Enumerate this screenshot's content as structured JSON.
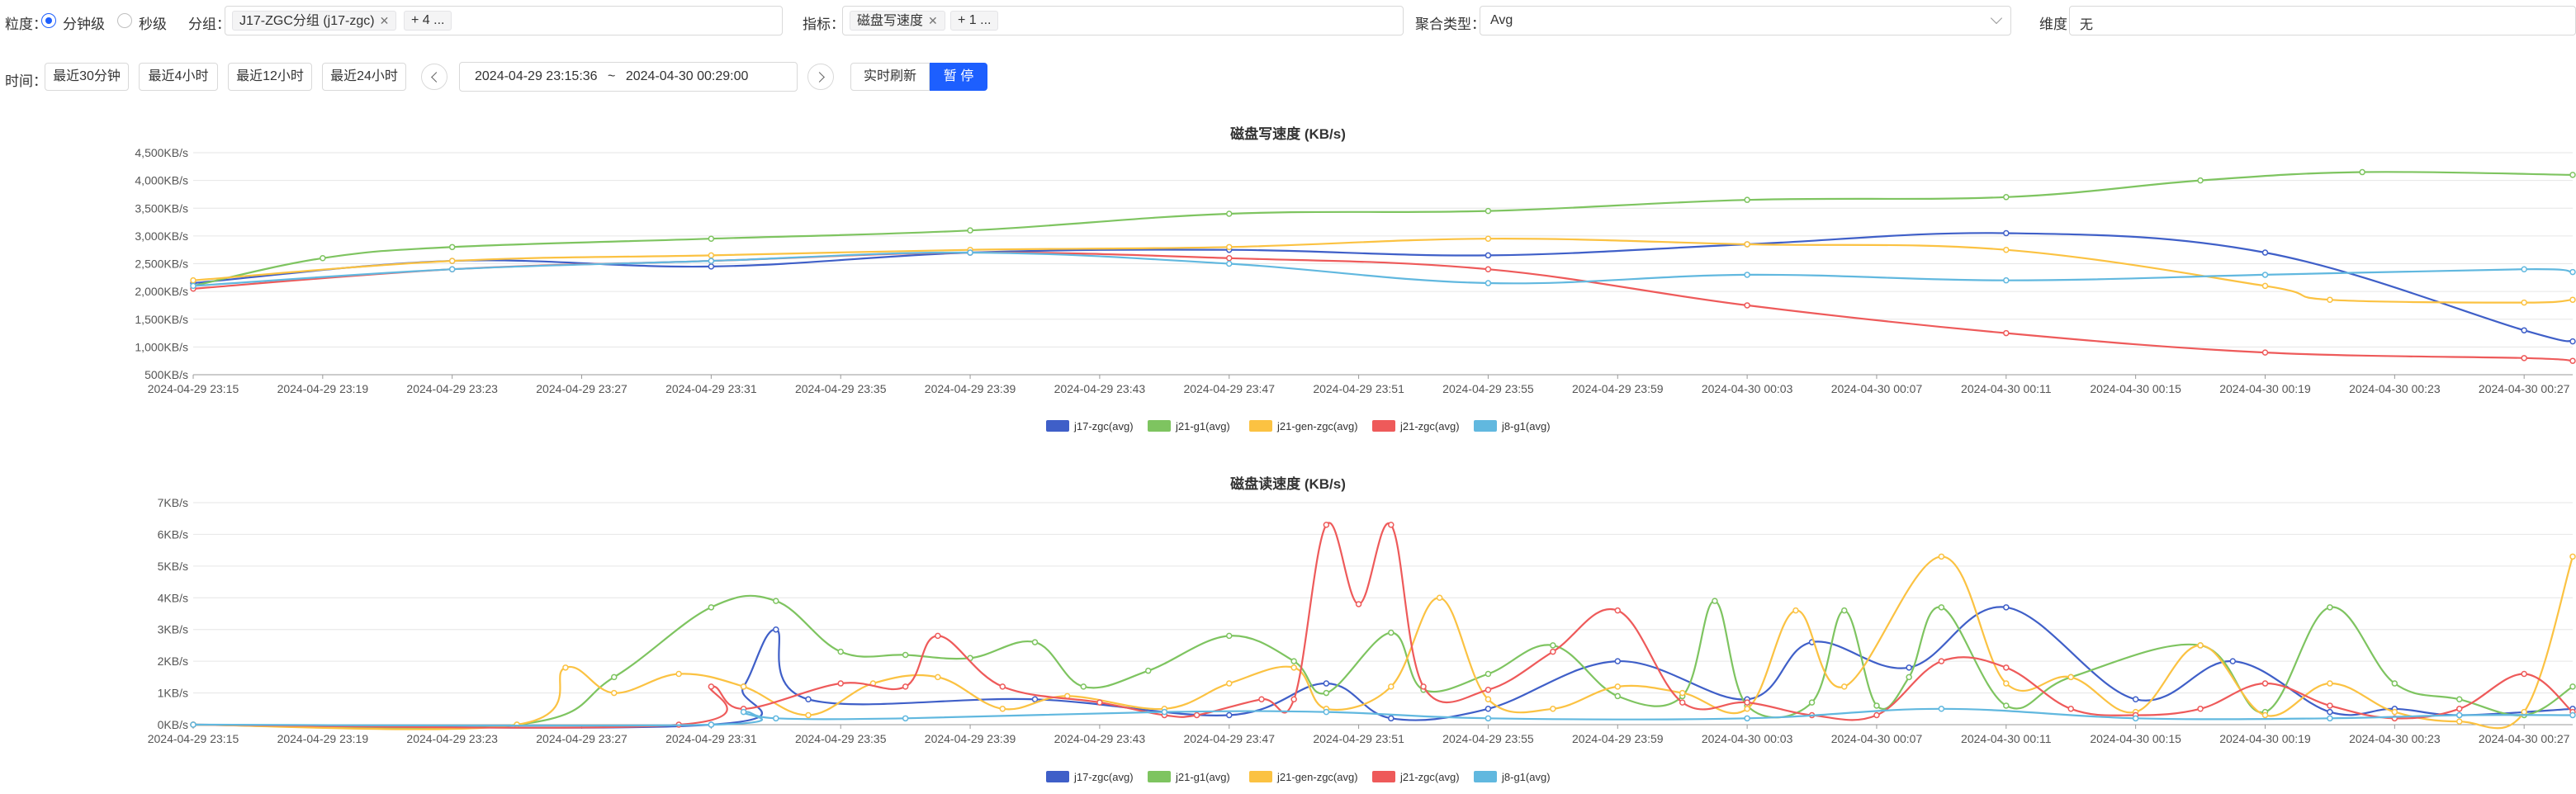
{
  "filters": {
    "granularity_label": "粒度：",
    "granularity_options": [
      "分钟级",
      "秒级"
    ],
    "granularity_selected": 0,
    "group_label": "分组：",
    "group_tags": [
      "J17-ZGC分组 (j17-zgc)",
      "+ 4 ..."
    ],
    "metric_label": "指标：",
    "metric_tags": [
      "磁盘写速度",
      "+ 1 ..."
    ],
    "agg_label": "聚合类型：",
    "agg_value": "Avg",
    "dim_label": "维度：",
    "dim_value": "无"
  },
  "time": {
    "label": "时间：",
    "quick": [
      "最近30分钟",
      "最近4小时",
      "最近12小时",
      "最近24小时"
    ],
    "start": "2024-04-29 23:15:36",
    "sep": "~",
    "end": "2024-04-30 00:29:00",
    "refresh_label": "实时刷新",
    "pause_label": "暂 停"
  },
  "colors": {
    "j17-zgc(avg)": "#3f5fc8",
    "j21-g1(avg)": "#7ec460",
    "j21-gen-zgc(avg)": "#fbc242",
    "j21-zgc(avg)": "#ee5a5a",
    "j8-g1(avg)": "#61b8df",
    "accent": "#1d5ffe"
  },
  "chart_data": [
    {
      "type": "line",
      "title": "磁盘写速度 (KB/s)",
      "xlabel": "",
      "ylabel": "",
      "ylim": [
        500,
        4500
      ],
      "yticks": [
        "500KB/s",
        "1,000KB/s",
        "1,500KB/s",
        "2,000KB/s",
        "2,500KB/s",
        "3,000KB/s",
        "3,500KB/s",
        "4,000KB/s",
        "4,500KB/s"
      ],
      "xlim": [
        0,
        73.5
      ],
      "xticks": [
        "2024-04-29 23:15",
        "2024-04-29 23:19",
        "2024-04-29 23:23",
        "2024-04-29 23:27",
        "2024-04-29 23:31",
        "2024-04-29 23:35",
        "2024-04-29 23:39",
        "2024-04-29 23:43",
        "2024-04-29 23:47",
        "2024-04-29 23:51",
        "2024-04-29 23:55",
        "2024-04-29 23:59",
        "2024-04-30 00:03",
        "2024-04-30 00:07",
        "2024-04-30 00:11",
        "2024-04-30 00:15",
        "2024-04-30 00:19",
        "2024-04-30 00:23",
        "2024-04-30 00:27"
      ],
      "legend": "bottom",
      "grid": true,
      "series": [
        {
          "name": "j17-zgc(avg)",
          "values": [
            [
              0,
              2150
            ],
            [
              8,
              2550
            ],
            [
              16,
              2450
            ],
            [
              24,
              2700
            ],
            [
              32,
              2750
            ],
            [
              40,
              2650
            ],
            [
              48,
              2850
            ],
            [
              56,
              3050
            ],
            [
              64,
              2700
            ],
            [
              72,
              1300
            ],
            [
              73.5,
              1100
            ]
          ]
        },
        {
          "name": "j21-g1(avg)",
          "values": [
            [
              0,
              2100
            ],
            [
              4,
              2600
            ],
            [
              8,
              2800
            ],
            [
              16,
              2950
            ],
            [
              24,
              3100
            ],
            [
              32,
              3400
            ],
            [
              40,
              3450
            ],
            [
              48,
              3650
            ],
            [
              56,
              3700
            ],
            [
              62,
              4000
            ],
            [
              67,
              4150
            ],
            [
              73.5,
              4100
            ]
          ]
        },
        {
          "name": "j21-gen-zgc(avg)",
          "values": [
            [
              0,
              2200
            ],
            [
              8,
              2550
            ],
            [
              16,
              2650
            ],
            [
              24,
              2750
            ],
            [
              32,
              2800
            ],
            [
              40,
              2950
            ],
            [
              48,
              2850
            ],
            [
              56,
              2750
            ],
            [
              64,
              2100
            ],
            [
              66,
              1850
            ],
            [
              72,
              1800
            ],
            [
              73.5,
              1850
            ]
          ]
        },
        {
          "name": "j21-zgc(avg)",
          "values": [
            [
              0,
              2050
            ],
            [
              8,
              2400
            ],
            [
              16,
              2550
            ],
            [
              24,
              2700
            ],
            [
              32,
              2600
            ],
            [
              40,
              2400
            ],
            [
              48,
              1750
            ],
            [
              56,
              1250
            ],
            [
              64,
              900
            ],
            [
              72,
              800
            ],
            [
              73.5,
              750
            ]
          ]
        },
        {
          "name": "j8-g1(avg)",
          "values": [
            [
              0,
              2100
            ],
            [
              8,
              2400
            ],
            [
              16,
              2550
            ],
            [
              24,
              2700
            ],
            [
              32,
              2500
            ],
            [
              40,
              2150
            ],
            [
              48,
              2300
            ],
            [
              56,
              2200
            ],
            [
              64,
              2300
            ],
            [
              72,
              2400
            ],
            [
              73.5,
              2350
            ]
          ]
        }
      ]
    },
    {
      "type": "line",
      "title": "磁盘读速度 (KB/s)",
      "xlabel": "",
      "ylabel": "",
      "ylim": [
        0,
        7
      ],
      "yticks": [
        "0KB/s",
        "1KB/s",
        "2KB/s",
        "3KB/s",
        "4KB/s",
        "5KB/s",
        "6KB/s",
        "7KB/s"
      ],
      "xlim": [
        0,
        73.5
      ],
      "xticks": [
        "2024-04-29 23:15",
        "2024-04-29 23:19",
        "2024-04-29 23:23",
        "2024-04-29 23:27",
        "2024-04-29 23:31",
        "2024-04-29 23:35",
        "2024-04-29 23:39",
        "2024-04-29 23:43",
        "2024-04-29 23:47",
        "2024-04-29 23:51",
        "2024-04-29 23:55",
        "2024-04-29 23:59",
        "2024-04-30 00:03",
        "2024-04-30 00:07",
        "2024-04-30 00:11",
        "2024-04-30 00:15",
        "2024-04-30 00:19",
        "2024-04-30 00:23",
        "2024-04-30 00:27"
      ],
      "legend": "bottom",
      "grid": true,
      "series": [
        {
          "name": "j17-zgc(avg)",
          "values": [
            [
              0,
              0
            ],
            [
              16,
              0
            ],
            [
              17,
              1.2
            ],
            [
              18,
              3
            ],
            [
              19,
              0.8
            ],
            [
              26,
              0.8
            ],
            [
              32,
              0.3
            ],
            [
              35,
              1.3
            ],
            [
              37,
              0.2
            ],
            [
              40,
              0.5
            ],
            [
              44,
              2
            ],
            [
              48,
              0.8
            ],
            [
              50,
              2.6
            ],
            [
              53,
              1.8
            ],
            [
              56,
              3.7
            ],
            [
              60,
              0.8
            ],
            [
              63,
              2
            ],
            [
              66,
              0.4
            ],
            [
              68,
              0.5
            ],
            [
              70,
              0.3
            ],
            [
              73.5,
              0.5
            ]
          ]
        },
        {
          "name": "j21-g1(avg)",
          "values": [
            [
              0,
              0
            ],
            [
              10,
              0
            ],
            [
              13,
              1.5
            ],
            [
              16,
              3.7
            ],
            [
              18,
              3.9
            ],
            [
              20,
              2.3
            ],
            [
              22,
              2.2
            ],
            [
              24,
              2.1
            ],
            [
              26,
              2.6
            ],
            [
              27.5,
              1.2
            ],
            [
              29.5,
              1.7
            ],
            [
              32,
              2.8
            ],
            [
              34,
              2
            ],
            [
              35,
              1
            ],
            [
              37,
              2.9
            ],
            [
              38,
              1.1
            ],
            [
              40,
              1.6
            ],
            [
              42,
              2.5
            ],
            [
              44,
              0.9
            ],
            [
              46,
              0.9
            ],
            [
              47,
              3.9
            ],
            [
              48,
              0.6
            ],
            [
              50,
              0.7
            ],
            [
              51,
              3.6
            ],
            [
              52,
              0.6
            ],
            [
              53,
              1.5
            ],
            [
              54,
              3.7
            ],
            [
              56,
              0.6
            ],
            [
              58,
              1.5
            ],
            [
              62,
              2.5
            ],
            [
              64,
              0.4
            ],
            [
              66,
              3.7
            ],
            [
              68,
              1.3
            ],
            [
              70,
              0.8
            ],
            [
              72,
              0.3
            ],
            [
              73.5,
              1.2
            ]
          ]
        },
        {
          "name": "j21-gen-zgc(avg)",
          "values": [
            [
              0,
              0
            ],
            [
              10,
              0
            ],
            [
              11.5,
              1.8
            ],
            [
              13,
              1
            ],
            [
              15,
              1.6
            ],
            [
              17,
              1.2
            ],
            [
              19,
              0.3
            ],
            [
              21,
              1.3
            ],
            [
              23,
              1.5
            ],
            [
              25,
              0.5
            ],
            [
              27,
              0.9
            ],
            [
              30,
              0.5
            ],
            [
              32,
              1.3
            ],
            [
              34,
              1.8
            ],
            [
              35,
              0.5
            ],
            [
              37,
              1.2
            ],
            [
              38.5,
              4
            ],
            [
              40,
              0.8
            ],
            [
              42,
              0.5
            ],
            [
              44,
              1.2
            ],
            [
              46,
              1
            ],
            [
              48,
              0.5
            ],
            [
              49.5,
              3.6
            ],
            [
              51,
              1.2
            ],
            [
              54,
              5.3
            ],
            [
              56,
              1.3
            ],
            [
              58,
              1.5
            ],
            [
              60,
              0.4
            ],
            [
              62,
              2.5
            ],
            [
              64,
              0.3
            ],
            [
              66,
              1.3
            ],
            [
              68,
              0.4
            ],
            [
              70,
              0.1
            ],
            [
              72,
              0.4
            ],
            [
              73.5,
              5.3
            ]
          ]
        },
        {
          "name": "j21-zgc(avg)",
          "values": [
            [
              0,
              0
            ],
            [
              15,
              0
            ],
            [
              16,
              1.2
            ],
            [
              17,
              0.5
            ],
            [
              20,
              1.3
            ],
            [
              22,
              1.2
            ],
            [
              23,
              2.8
            ],
            [
              25,
              1.2
            ],
            [
              28,
              0.7
            ],
            [
              30,
              0.3
            ],
            [
              31,
              0.3
            ],
            [
              33,
              0.8
            ],
            [
              34,
              0.8
            ],
            [
              35,
              6.3
            ],
            [
              36,
              3.8
            ],
            [
              37,
              6.3
            ],
            [
              38,
              1.2
            ],
            [
              40,
              1.1
            ],
            [
              42,
              2.3
            ],
            [
              44,
              3.6
            ],
            [
              46,
              0.7
            ],
            [
              48,
              0.7
            ],
            [
              50,
              0.3
            ],
            [
              52,
              0.3
            ],
            [
              54,
              2
            ],
            [
              56,
              1.8
            ],
            [
              58,
              0.5
            ],
            [
              60,
              0.3
            ],
            [
              62,
              0.5
            ],
            [
              64,
              1.3
            ],
            [
              66,
              0.6
            ],
            [
              68,
              0.2
            ],
            [
              70,
              0.5
            ],
            [
              72,
              1.6
            ],
            [
              73.5,
              0.4
            ]
          ]
        },
        {
          "name": "j8-g1(avg)",
          "values": [
            [
              0,
              0
            ],
            [
              16,
              0
            ],
            [
              17,
              0.4
            ],
            [
              18,
              0.2
            ],
            [
              22,
              0.2
            ],
            [
              30,
              0.4
            ],
            [
              35,
              0.4
            ],
            [
              40,
              0.2
            ],
            [
              48,
              0.2
            ],
            [
              54,
              0.5
            ],
            [
              60,
              0.2
            ],
            [
              66,
              0.2
            ],
            [
              70,
              0.3
            ],
            [
              73.5,
              0.3
            ]
          ]
        }
      ]
    }
  ]
}
